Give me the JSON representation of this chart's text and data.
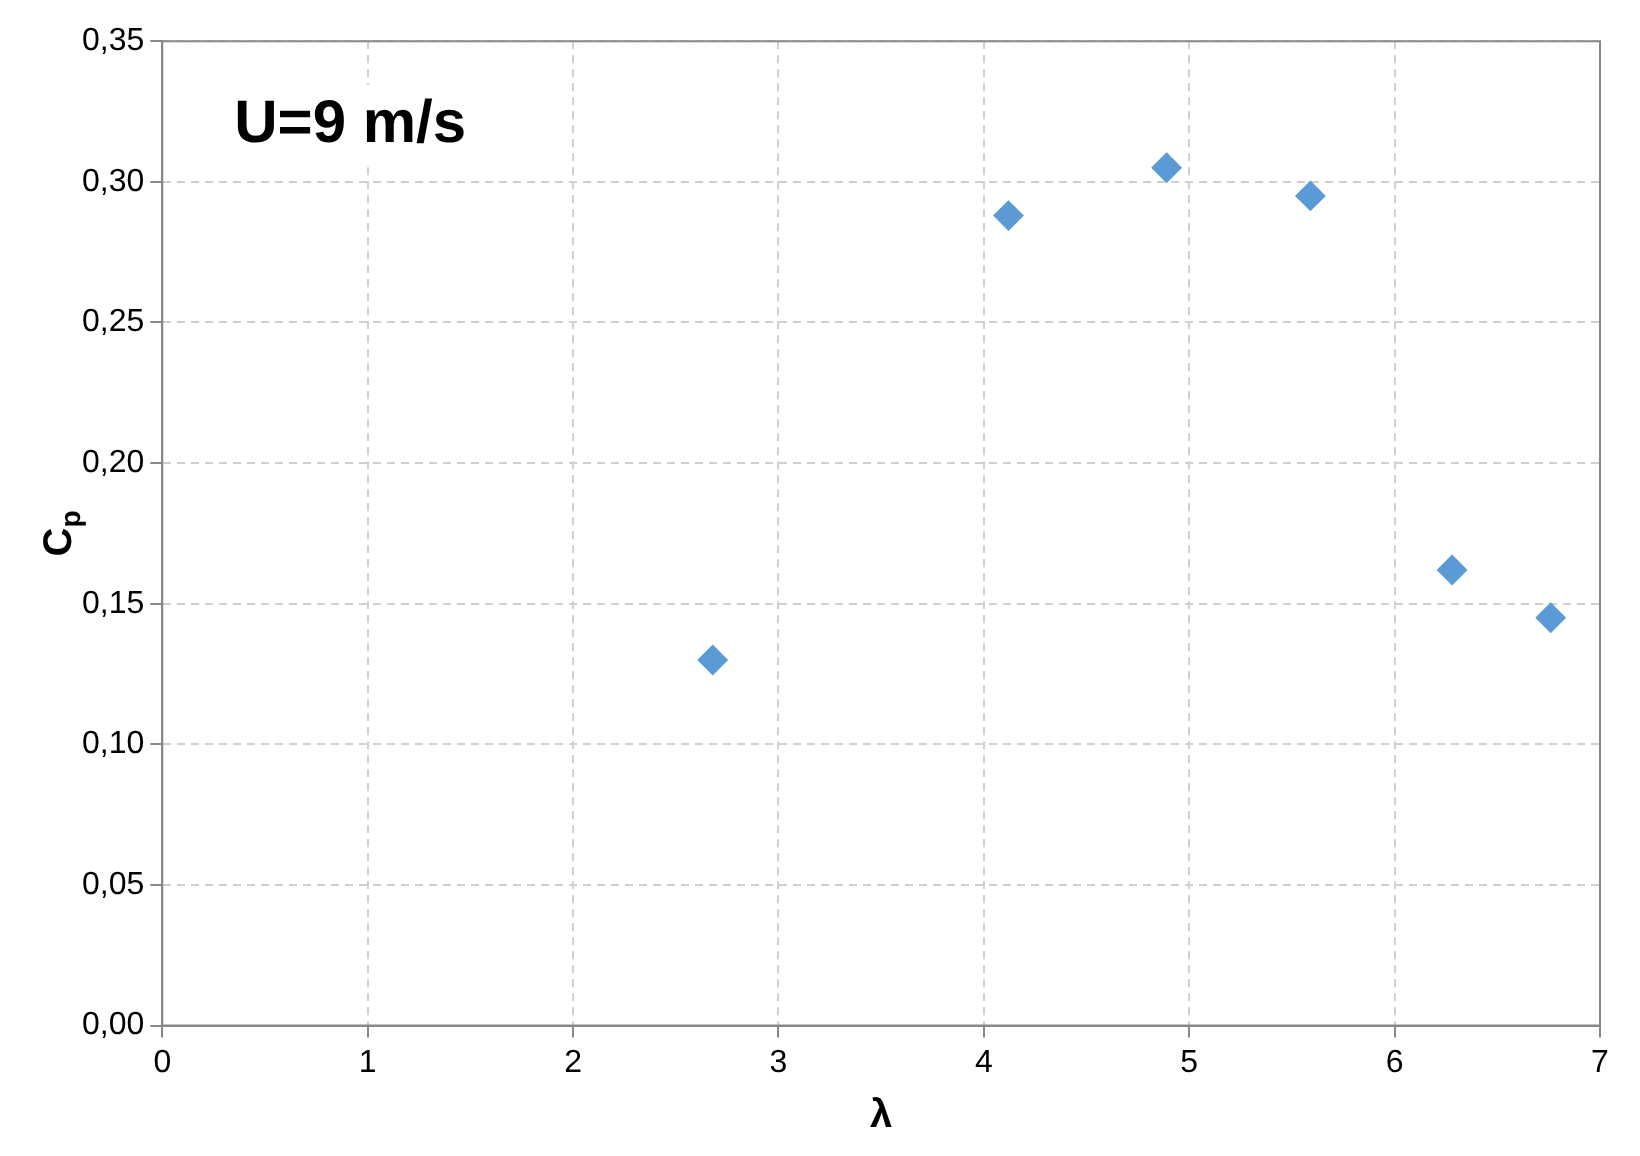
{
  "chart_data": {
    "type": "scatter",
    "xlabel": "λ",
    "ylabel": "C$_{p}$",
    "annotations": [
      "U=9 m/s"
    ],
    "x": [
      2.68,
      4.12,
      4.89,
      5.59,
      6.28,
      6.76
    ],
    "series": [
      {
        "color": "#5b9bd5",
        "values": [
          0.13,
          0.288,
          0.305,
          0.295,
          0.162,
          0.145
        ]
      }
    ],
    "xlim": [
      0,
      7
    ],
    "xticks": [
      0,
      1,
      2,
      3,
      4,
      5,
      6,
      7
    ],
    "ylim": [
      0,
      0.35
    ],
    "yticks": [
      {
        "value": 0,
        "label": "0,00"
      },
      {
        "value": 0.05,
        "label": "0,05"
      },
      {
        "value": 0.1,
        "label": "0,10"
      },
      {
        "value": 0.15,
        "label": "0,15"
      },
      {
        "value": 0.2,
        "label": "0,20"
      },
      {
        "value": 0.25,
        "label": "0,25"
      },
      {
        "value": 0.3,
        "label": "0,30"
      },
      {
        "value": 0.35,
        "label": "0,35"
      }
    ],
    "grid": true,
    "marker": "diamond"
  }
}
